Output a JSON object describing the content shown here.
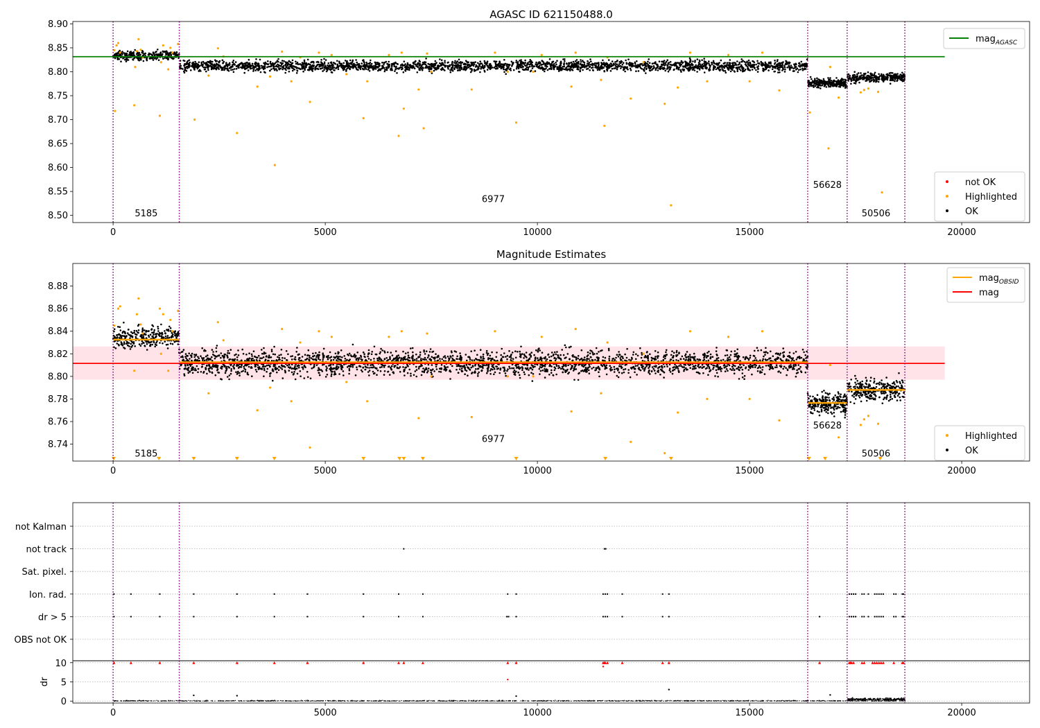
{
  "chart_data": [
    {
      "type": "scatter",
      "title": "AGASC ID 621150488.0",
      "xlim": [
        -950,
        21600
      ],
      "ylim": [
        8.485,
        8.905
      ],
      "xticks": [
        0,
        5000,
        10000,
        15000,
        20000
      ],
      "yticks": [
        8.5,
        8.55,
        8.6,
        8.65,
        8.7,
        8.75,
        8.8,
        8.85,
        8.9
      ],
      "ytick_labels": [
        "8.50",
        "8.55",
        "8.60",
        "8.65",
        "8.70",
        "8.75",
        "8.80",
        "8.85",
        "8.90"
      ],
      "obs_boundaries": [
        0,
        1560,
        16370,
        17300,
        18660
      ],
      "obs_labels": [
        {
          "text": "5185",
          "x": 780,
          "y": 8.505
        },
        {
          "text": "6977",
          "x": 8960,
          "y": 8.535
        },
        {
          "text": "56628",
          "x": 16835,
          "y": 8.565
        },
        {
          "text": "50506",
          "x": 17980,
          "y": 8.505
        }
      ],
      "reference_line": {
        "name": "mag",
        "sub": "AGASC",
        "value": 8.8315,
        "x": [
          -950,
          19600
        ],
        "color": "#008000"
      },
      "series": [
        {
          "name": "OK",
          "color": "#000000",
          "segments": [
            {
              "x": [
                0,
                1560
              ],
              "mean": 8.834,
              "spread": 0.014,
              "n": 300
            },
            {
              "x": [
                1560,
                16370
              ],
              "mean": 8.812,
              "spread": 0.016,
              "n": 2500
            },
            {
              "x": [
                16370,
                17300
              ],
              "mean": 8.776,
              "spread": 0.012,
              "n": 240
            },
            {
              "x": [
                17300,
                18660
              ],
              "mean": 8.788,
              "spread": 0.014,
              "n": 300
            }
          ]
        },
        {
          "name": "Highlighted",
          "color": "#ffa500",
          "x": [
            30,
            45,
            80,
            120,
            165,
            500,
            520,
            560,
            600,
            650,
            700,
            1100,
            1130,
            1180,
            1300,
            1350,
            1400,
            1530,
            1920,
            2250,
            2470,
            2600,
            2920,
            3400,
            3700,
            3810,
            3980,
            4200,
            4410,
            4640,
            4850,
            5150,
            5500,
            5900,
            5990,
            6500,
            6730,
            6800,
            6850,
            7200,
            7320,
            7400,
            7500,
            8450,
            9000,
            9300,
            9500,
            9900,
            10100,
            10800,
            10900,
            11500,
            11580,
            11650,
            12200,
            12500,
            13000,
            13150,
            13310,
            13600,
            14000,
            14500,
            15000,
            15300,
            15700,
            16420,
            16860,
            16900,
            17100,
            17620,
            17700,
            17800,
            18030,
            18120
          ],
          "y": [
            8.845,
            8.718,
            8.855,
            8.86,
            8.84,
            8.73,
            8.81,
            8.843,
            8.868,
            8.846,
            8.83,
            8.708,
            8.82,
            8.855,
            8.805,
            8.85,
            8.84,
            8.858,
            8.7,
            8.792,
            8.849,
            8.832,
            8.672,
            8.769,
            8.79,
            8.605,
            8.842,
            8.78,
            8.83,
            8.737,
            8.84,
            8.835,
            8.795,
            8.703,
            8.78,
            8.835,
            8.666,
            8.84,
            8.723,
            8.763,
            8.682,
            8.838,
            8.8,
            8.763,
            8.84,
            8.8,
            8.694,
            8.8,
            8.835,
            8.769,
            8.84,
            8.783,
            8.687,
            8.83,
            8.744,
            8.82,
            8.733,
            8.521,
            8.767,
            8.84,
            8.78,
            8.835,
            8.78,
            8.84,
            8.761,
            8.715,
            8.64,
            8.81,
            8.746,
            8.757,
            8.762,
            8.765,
            8.758,
            8.548
          ]
        },
        {
          "name": "not OK",
          "color": "#ff0000",
          "x": [],
          "y": []
        }
      ],
      "legend_lines": [
        {
          "name": "mag",
          "sub": "AGASC",
          "color": "#008000"
        }
      ],
      "legend_markers": [
        {
          "name": "not OK",
          "color": "#ff0000"
        },
        {
          "name": "Highlighted",
          "color": "#ffa500"
        },
        {
          "name": "OK",
          "color": "#000000"
        }
      ]
    },
    {
      "type": "scatter",
      "title": "Magnitude Estimates",
      "xlim": [
        -950,
        21600
      ],
      "ylim": [
        8.725,
        8.9
      ],
      "xticks": [
        0,
        5000,
        10000,
        15000,
        20000
      ],
      "yticks": [
        8.74,
        8.76,
        8.78,
        8.8,
        8.82,
        8.84,
        8.86,
        8.88
      ],
      "ytick_labels": [
        "8.74",
        "8.76",
        "8.78",
        "8.80",
        "8.82",
        "8.84",
        "8.86",
        "8.88"
      ],
      "obs_boundaries": [
        0,
        1560,
        16370,
        17300,
        18660
      ],
      "obs_labels": [
        {
          "text": "5185",
          "x": 780,
          "y": 8.732
        },
        {
          "text": "6977",
          "x": 8960,
          "y": 8.745
        },
        {
          "text": "56628",
          "x": 16835,
          "y": 8.757
        },
        {
          "text": "50506",
          "x": 17980,
          "y": 8.732
        }
      ],
      "mag": {
        "name": "mag",
        "value": 8.8115,
        "band": [
          8.797,
          8.8265
        ],
        "x": [
          -950,
          19600
        ],
        "color": "#ff0000",
        "band_color": "#ffc0cb"
      },
      "mag_obsid": {
        "name": "mag",
        "sub": "OBSID",
        "color": "#ffa500",
        "segments": [
          {
            "x": [
              0,
              1560
            ],
            "value": 8.8325
          },
          {
            "x": [
              1560,
              16370
            ],
            "value": 8.8125
          },
          {
            "x": [
              16370,
              17300
            ],
            "value": 8.7765
          },
          {
            "x": [
              17300,
              18660
            ],
            "value": 8.788
          }
        ]
      },
      "offscale_markers": [
        15,
        1080,
        1900,
        2920,
        3800,
        5900,
        6750,
        6850,
        7300,
        9500,
        11600,
        13150,
        16400,
        16780,
        18080
      ],
      "series": [
        {
          "name": "OK",
          "color": "#000000",
          "segments": [
            {
              "x": [
                0,
                1560
              ],
              "mean": 8.834,
              "spread": 0.014,
              "n": 300
            },
            {
              "x": [
                1560,
                16370
              ],
              "mean": 8.812,
              "spread": 0.016,
              "n": 2500
            },
            {
              "x": [
                16370,
                17300
              ],
              "mean": 8.776,
              "spread": 0.012,
              "n": 240
            },
            {
              "x": [
                17300,
                18660
              ],
              "mean": 8.788,
              "spread": 0.014,
              "n": 300
            }
          ]
        },
        {
          "name": "Highlighted",
          "color": "#ffa500",
          "x": [
            30,
            120,
            165,
            500,
            560,
            600,
            650,
            700,
            1100,
            1130,
            1180,
            1300,
            1350,
            1400,
            1530,
            2250,
            2470,
            2600,
            3400,
            3700,
            3980,
            4200,
            4410,
            4640,
            4850,
            5150,
            5500,
            5990,
            6500,
            6800,
            7200,
            7400,
            7500,
            8450,
            9000,
            9300,
            9900,
            10100,
            10800,
            10900,
            11500,
            11650,
            12200,
            12500,
            13000,
            13310,
            13600,
            14000,
            14500,
            15000,
            15300,
            15700,
            16900,
            17100,
            17620,
            17700,
            17800,
            18030
          ],
          "y": [
            8.845,
            8.86,
            8.862,
            8.805,
            8.855,
            8.869,
            8.846,
            8.838,
            8.86,
            8.82,
            8.855,
            8.805,
            8.85,
            8.84,
            8.858,
            8.785,
            8.848,
            8.832,
            8.77,
            8.79,
            8.842,
            8.778,
            8.83,
            8.737,
            8.84,
            8.835,
            8.795,
            8.778,
            8.835,
            8.84,
            8.763,
            8.838,
            8.8,
            8.764,
            8.84,
            8.8,
            8.8,
            8.835,
            8.769,
            8.842,
            8.785,
            8.83,
            8.742,
            8.82,
            8.732,
            8.768,
            8.84,
            8.78,
            8.835,
            8.78,
            8.84,
            8.761,
            8.81,
            8.746,
            8.757,
            8.762,
            8.765,
            8.758
          ]
        }
      ],
      "legend_lines": [
        {
          "name": "mag",
          "sub": "OBSID",
          "color": "#ffa500"
        },
        {
          "name": "mag",
          "sub": "",
          "color": "#ff0000"
        }
      ],
      "legend_markers": [
        {
          "name": "Highlighted",
          "color": "#ffa500"
        },
        {
          "name": "OK",
          "color": "#000000"
        }
      ]
    },
    {
      "type": "scatter",
      "title": "",
      "xlim": [
        -950,
        21600
      ],
      "xticks": [
        0,
        5000,
        10000,
        15000,
        20000
      ],
      "obs_boundaries": [
        0,
        1560,
        16370,
        17300,
        18660
      ],
      "flag_rows": [
        "not Kalman",
        "not track",
        "Sat. pixel.",
        "Ion. rad.",
        "dr > 5",
        "OBS not OK"
      ],
      "flags": {
        "not Kalman": [],
        "not track": [
          6850,
          11580,
          11610
        ],
        "Sat. pixel.": [],
        "Ion. rad.": [
          20,
          420,
          1100,
          1900,
          2920,
          3800,
          4580,
          5900,
          6730,
          7300,
          9300,
          9500,
          11550,
          11600,
          11650,
          12000,
          12950,
          13100,
          17350,
          17400,
          17450,
          17500,
          17650,
          17700,
          17800,
          17950,
          18000,
          18050,
          18100,
          18150,
          18400,
          18450,
          18600,
          18630
        ],
        "dr > 5": [
          20,
          420,
          1100,
          1900,
          2920,
          3800,
          4580,
          5900,
          6730,
          7300,
          9280,
          9320,
          9500,
          11550,
          11600,
          11650,
          12000,
          12950,
          13100,
          16650,
          17350,
          17400,
          17450,
          17500,
          17650,
          17700,
          17800,
          17950,
          18000,
          18050,
          18100,
          18150,
          18400,
          18450,
          18600,
          18630
        ],
        "OBS not OK": []
      },
      "dr": {
        "ylabel": "dr",
        "ylim": [
          -0.5,
          10.5
        ],
        "yticks": [
          0,
          5,
          10
        ],
        "clip_value": 10,
        "clipped_x": [
          20,
          420,
          1100,
          1900,
          2920,
          3800,
          4580,
          5900,
          6730,
          6850,
          7300,
          9300,
          9500,
          11550,
          11580,
          11600,
          11650,
          12000,
          12950,
          13100,
          16650,
          17350,
          17380,
          17400,
          17450,
          17650,
          17700,
          17900,
          17950,
          18000,
          18050,
          18100,
          18150,
          18400,
          18600,
          18630
        ],
        "outliers": [
          {
            "x": 9300,
            "y": 5.6,
            "color": "#ff0000"
          },
          {
            "x": 11550,
            "y": 9.0,
            "color": "#ff0000"
          },
          {
            "x": 1900,
            "y": 1.5,
            "color": "#000000"
          },
          {
            "x": 2920,
            "y": 1.4,
            "color": "#000000"
          },
          {
            "x": 13100,
            "y": 3.0,
            "color": "#000000"
          },
          {
            "x": 16900,
            "y": 1.6,
            "color": "#000000"
          },
          {
            "x": 9500,
            "y": 1.3,
            "color": "#000000"
          }
        ]
      }
    }
  ]
}
